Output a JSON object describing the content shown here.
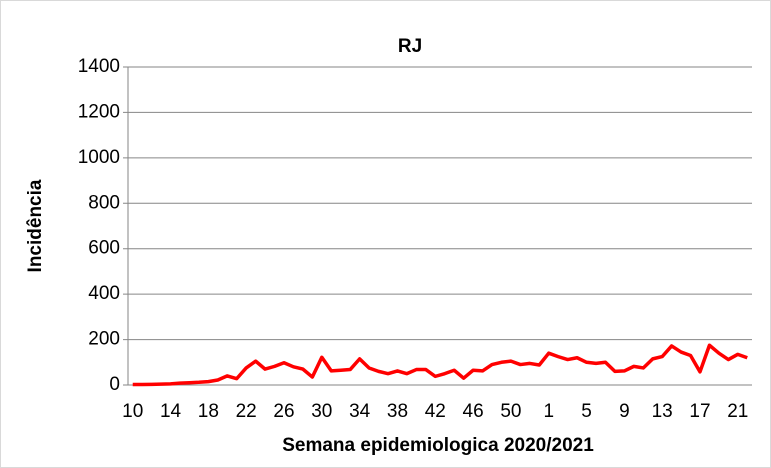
{
  "chart_data": {
    "type": "line",
    "title": "RJ",
    "x_label": "Semana epidemiologica 2020/2021",
    "y_label": "Incidência",
    "categories": [
      "10",
      null,
      null,
      null,
      "14",
      null,
      null,
      null,
      "18",
      null,
      null,
      null,
      "22",
      null,
      null,
      null,
      "26",
      null,
      null,
      null,
      "30",
      null,
      null,
      null,
      "34",
      null,
      null,
      null,
      "38",
      null,
      null,
      null,
      "42",
      null,
      null,
      null,
      "46",
      null,
      null,
      null,
      "50",
      null,
      null,
      null,
      "1",
      null,
      null,
      null,
      "5",
      null,
      null,
      null,
      "9",
      null,
      null,
      null,
      "13",
      null,
      null,
      null,
      "17",
      null,
      null,
      null,
      "21",
      null
    ],
    "series": [
      {
        "name": "RJ",
        "color": "#ff0000",
        "values": [
          2,
          2,
          3,
          4,
          5,
          8,
          10,
          12,
          15,
          22,
          40,
          28,
          75,
          105,
          70,
          82,
          98,
          80,
          70,
          35,
          122,
          62,
          65,
          68,
          115,
          75,
          60,
          50,
          62,
          50,
          68,
          68,
          38,
          50,
          65,
          30,
          65,
          62,
          90,
          100,
          105,
          90,
          95,
          88,
          140,
          125,
          112,
          120,
          100,
          95,
          100,
          60,
          62,
          82,
          75,
          115,
          125,
          172,
          145,
          130,
          58,
          175,
          140,
          112,
          135,
          120
        ]
      }
    ],
    "ylim": [
      0,
      1400
    ],
    "yticks": [
      0,
      200,
      400,
      600,
      800,
      1000,
      1200,
      1400
    ],
    "grid": true
  }
}
